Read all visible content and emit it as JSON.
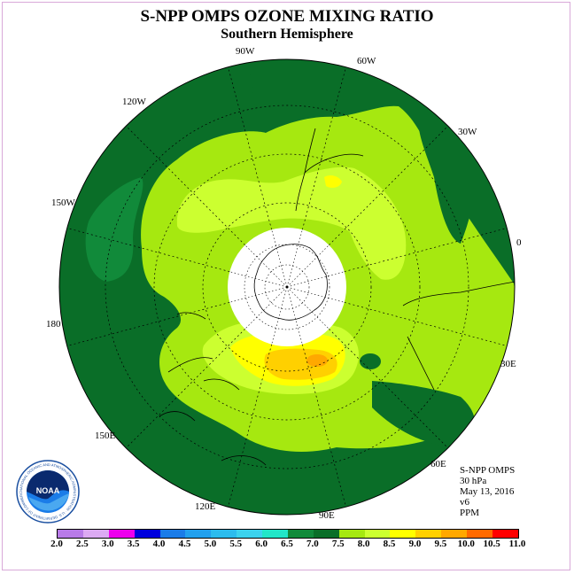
{
  "title": "S-NPP OMPS OZONE MIXING RATIO",
  "subtitle": "Southern Hemisphere",
  "lon_labels": [
    "90W",
    "60W",
    "30W",
    "0",
    "30E",
    "60E",
    "90E",
    "120E",
    "150E",
    "180",
    "150W",
    "120W"
  ],
  "info": {
    "instrument": "S-NPP OMPS",
    "level": "30 hPa",
    "date": "May 13, 2016",
    "version": "v6",
    "units": "PPM"
  },
  "colorbar": {
    "ticks": [
      "2.0",
      "2.5",
      "3.0",
      "3.5",
      "4.0",
      "4.5",
      "5.0",
      "5.5",
      "6.0",
      "6.5",
      "7.0",
      "7.5",
      "8.0",
      "8.5",
      "9.0",
      "9.5",
      "10.0",
      "10.5",
      "11.0"
    ],
    "colors": [
      "#b87be8",
      "#dcaaf3",
      "#ee00ee",
      "#0000dd",
      "#1a7ce8",
      "#22a0ee",
      "#2cbcee",
      "#3cd2ee",
      "#22e6c8",
      "#118a3a",
      "#0a6e28",
      "#a6e810",
      "#ccff30",
      "#ffff00",
      "#ffd000",
      "#ffa800",
      "#ff6a00",
      "#ff0000",
      "#7a4826"
    ]
  },
  "logo_text": "NOAA",
  "logo_ring_text": "NATIONAL OCEANIC AND ATMOSPHERIC ADMINISTRATION · U.S. DEPARTMENT OF COMMERCE"
}
